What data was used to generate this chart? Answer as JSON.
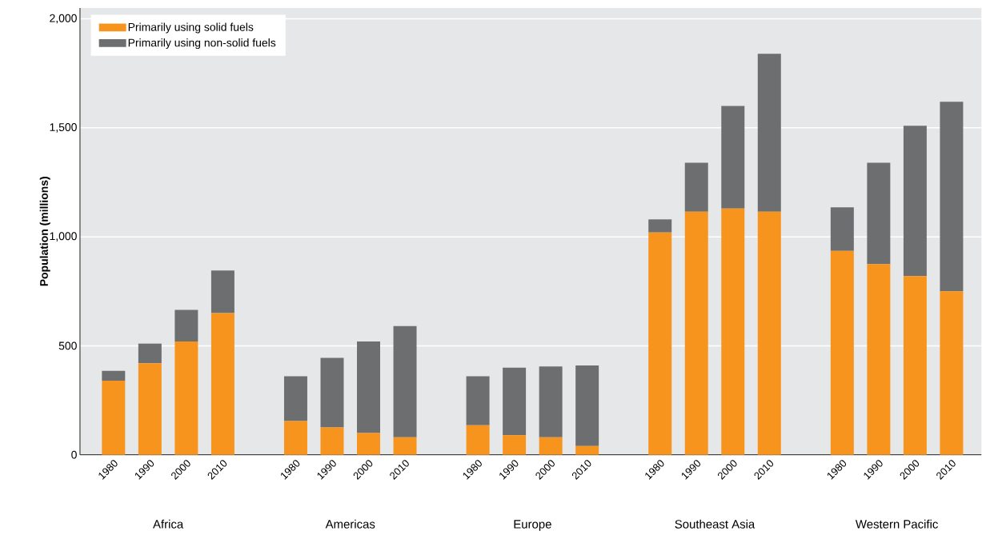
{
  "chart_data": {
    "type": "bar",
    "stacked": true,
    "ylabel": "Population (millions)",
    "categories": [
      "1980",
      "1990",
      "2000",
      "2010",
      null,
      "1980",
      "1990",
      "2000",
      "2010",
      null,
      "1980",
      "1990",
      "2000",
      "2010",
      null,
      "1980",
      "1990",
      "2000",
      "2010",
      null,
      "1980",
      "1990",
      "2000",
      "2010"
    ],
    "series": [
      {
        "name": "Primarily using solid fuels",
        "color": "#f7941d",
        "values": [
          340,
          420,
          520,
          650,
          null,
          155,
          125,
          100,
          80,
          null,
          135,
          90,
          80,
          40,
          null,
          1020,
          1115,
          1130,
          1115,
          null,
          935,
          875,
          820,
          750
        ]
      },
      {
        "name": "Primarily using non-solid fuels",
        "color": "#6d6e70",
        "values": [
          45,
          90,
          145,
          195,
          null,
          205,
          320,
          420,
          510,
          null,
          225,
          310,
          325,
          370,
          null,
          60,
          225,
          470,
          725,
          null,
          200,
          465,
          690,
          870
        ]
      }
    ],
    "annotations": [
      "Africa",
      "Americas",
      "Europe",
      "Southeast Asia",
      "Western Pacific"
    ],
    "ylim": [
      0,
      2050
    ],
    "yticks": [
      0,
      {
        "value": 500,
        "label": "500"
      },
      {
        "value": 1000,
        "label": "1,000"
      },
      {
        "value": 1500,
        "label": "1,500"
      },
      {
        "value": 2000,
        "label": "2,000"
      }
    ],
    "grid": "y",
    "legend": "top left"
  }
}
